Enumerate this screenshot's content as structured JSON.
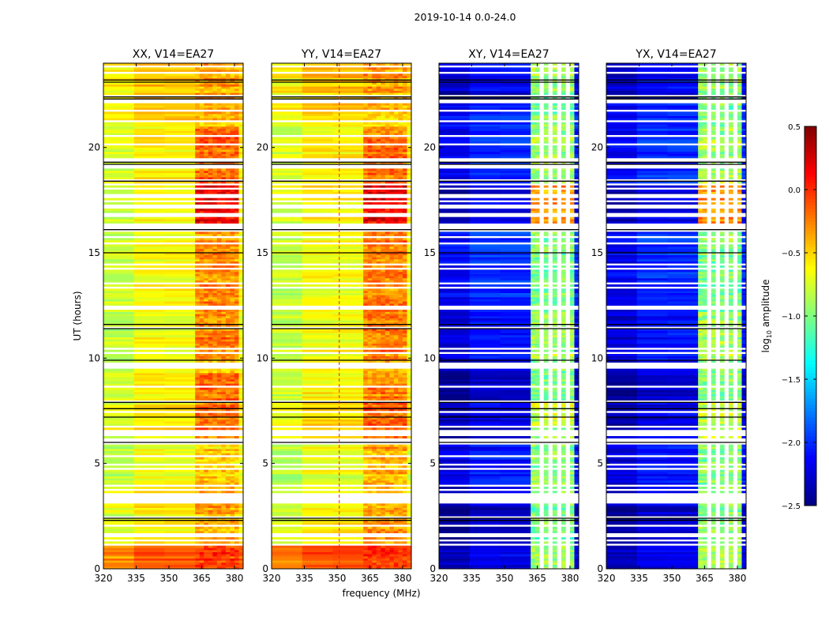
{
  "chart_data": {
    "type": "heatmap",
    "title": "2019-10-14 0.0-24.0",
    "xlabel": "frequency (MHz)",
    "ylabel": "UT (hours)",
    "xlim": [
      320,
      384
    ],
    "ylim": [
      0,
      24
    ],
    "xticks": [
      320,
      335,
      350,
      365,
      380
    ],
    "yticks": [
      0,
      5,
      10,
      15,
      20
    ],
    "colorbar": {
      "label": "log10 amplitude",
      "label_main": "log",
      "label_sub": "10",
      "label_rest": " amplitude",
      "range": [
        -2.5,
        0.5
      ],
      "ticks": [
        "0.5",
        "0.0",
        "−0.5",
        "−1.0",
        "−1.5",
        "−2.0",
        "−2.5"
      ],
      "tick_values": [
        0.5,
        0.0,
        -0.5,
        -1.0,
        -1.5,
        -2.0,
        -2.5
      ],
      "colormap": "jet"
    },
    "panels": [
      {
        "title": "XX, V14=EA27",
        "key": "xx"
      },
      {
        "title": "YY, V14=EA27",
        "key": "yy"
      },
      {
        "title": "XY, V14=EA27",
        "key": "xy"
      },
      {
        "title": "YX, V14=EA27",
        "key": "yx"
      }
    ],
    "segments": [
      {
        "t": [
          0.0,
          1.1
        ],
        "flag": 0.15,
        "xx": [
          -0.15,
          -0.05
        ],
        "yy": [
          -0.12,
          -0.05
        ],
        "xy": [
          -2.2,
          -0.9
        ],
        "yx": [
          -2.2,
          -0.9
        ]
      },
      {
        "t": [
          1.1,
          3.0
        ],
        "flag": 0.35,
        "xx": [
          -0.6,
          -0.4
        ],
        "yy": [
          -0.6,
          -0.35
        ],
        "xy": [
          -2.3,
          -1.0
        ],
        "yx": [
          -2.3,
          -1.0
        ]
      },
      {
        "t": [
          3.0,
          4.0
        ],
        "flag": 0.7,
        "xx": [
          -0.6,
          -0.45
        ],
        "yy": [
          -0.6,
          -0.4
        ],
        "xy": [
          -2.2,
          -1.0
        ],
        "yx": [
          -2.2,
          -1.0
        ]
      },
      {
        "t": [
          4.0,
          6.1
        ],
        "flag": 0.3,
        "xx": [
          -0.7,
          -0.5
        ],
        "yy": [
          -0.7,
          -0.4
        ],
        "xy": [
          -2.1,
          -1.0
        ],
        "yx": [
          -2.1,
          -1.0
        ]
      },
      {
        "t": [
          6.1,
          8.0
        ],
        "flag": 0.3,
        "xx": [
          -0.55,
          -0.2
        ],
        "yy": [
          -0.55,
          -0.2
        ],
        "xy": [
          -2.2,
          -0.8
        ],
        "yx": [
          -2.2,
          -0.8
        ]
      },
      {
        "t": [
          8.0,
          9.3
        ],
        "flag": 0.2,
        "xx": [
          -0.6,
          -0.2
        ],
        "yy": [
          -0.6,
          -0.25
        ],
        "xy": [
          -2.3,
          -1.0
        ],
        "yx": [
          -2.3,
          -1.0
        ]
      },
      {
        "t": [
          9.3,
          9.9
        ],
        "flag": 0.6,
        "xx": [
          -0.6,
          -0.4
        ],
        "yy": [
          -0.6,
          -0.4
        ],
        "xy": [
          -2.2,
          -1.0
        ],
        "yx": [
          -2.2,
          -1.0
        ]
      },
      {
        "t": [
          9.9,
          12.2
        ],
        "flag": 0.2,
        "xx": [
          -0.65,
          -0.25
        ],
        "yy": [
          -0.65,
          -0.25
        ],
        "xy": [
          -2.1,
          -0.9
        ],
        "yx": [
          -2.1,
          -0.9
        ]
      },
      {
        "t": [
          12.2,
          16.0
        ],
        "flag": 0.3,
        "xx": [
          -0.65,
          -0.3
        ],
        "yy": [
          -0.65,
          -0.25
        ],
        "xy": [
          -2.0,
          -1.0
        ],
        "yx": [
          -2.0,
          -1.0
        ]
      },
      {
        "t": [
          16.0,
          18.2
        ],
        "flag": 0.45,
        "xx": [
          -0.6,
          0.2
        ],
        "yy": [
          -0.6,
          0.15
        ],
        "xy": [
          -2.2,
          -0.3
        ],
        "yx": [
          -2.2,
          -0.3
        ]
      },
      {
        "t": [
          18.2,
          21.0
        ],
        "flag": 0.35,
        "xx": [
          -0.6,
          -0.2
        ],
        "yy": [
          -0.6,
          -0.2
        ],
        "xy": [
          -2.0,
          -0.9
        ],
        "yx": [
          -2.0,
          -0.9
        ]
      },
      {
        "t": [
          21.0,
          22.1
        ],
        "flag": 0.1,
        "xx": [
          -0.5,
          -0.45
        ],
        "yy": [
          -0.45,
          -0.45
        ],
        "xy": [
          -2.0,
          -1.0
        ],
        "yx": [
          -2.0,
          -1.0
        ]
      },
      {
        "t": [
          22.1,
          22.6
        ],
        "flag": 0.9,
        "xx": [
          -0.5,
          -0.4
        ],
        "yy": [
          -0.5,
          -0.4
        ],
        "xy": [
          -2.3,
          -1.0
        ],
        "yx": [
          -2.3,
          -1.0
        ]
      },
      {
        "t": [
          22.6,
          24.0
        ],
        "flag": 0.25,
        "xx": [
          -0.45,
          -0.35
        ],
        "yy": [
          -0.45,
          -0.35
        ],
        "xy": [
          -2.1,
          -0.9
        ],
        "yx": [
          -2.1,
          -0.9
        ]
      }
    ],
    "black_lines_hours": [
      2.3,
      2.4,
      6.0,
      7.2,
      7.6,
      7.9,
      9.9,
      11.4,
      11.6,
      15.0,
      16.1,
      18.4,
      19.2,
      19.3,
      22.3,
      22.4,
      23.1,
      23.2
    ],
    "flagged_channels_cross_mhz": [
      366,
      370,
      374,
      378
    ],
    "rfi_lines": [
      {
        "panel": "yy",
        "freq": 351
      }
    ]
  }
}
